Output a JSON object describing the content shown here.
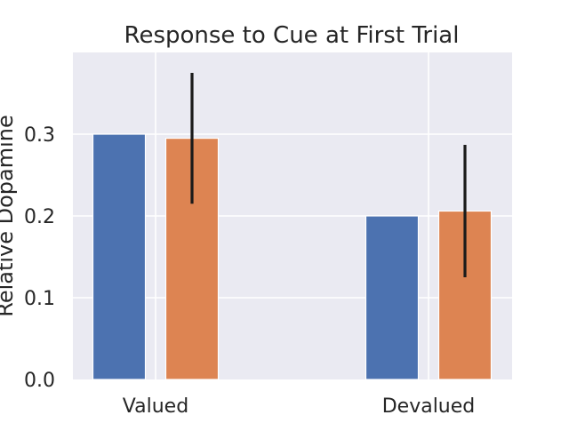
{
  "chart_data": {
    "type": "bar",
    "title": "Response to Cue at First Trial",
    "xlabel": "",
    "ylabel": "Relative Dopamine",
    "categories": [
      "Valued",
      "Devalued"
    ],
    "yticks": [
      "0.0",
      "0.1",
      "0.2",
      "0.3"
    ],
    "ylim": [
      0,
      0.4
    ],
    "grid": true,
    "legend": "none",
    "background_color": "#eaeaf2",
    "series": [
      {
        "color": "#4c72b0",
        "values": [
          0.3,
          0.2
        ]
      },
      {
        "color": "#dd8452",
        "values": [
          0.295,
          0.206
        ],
        "error": [
          0.08,
          0.081
        ]
      }
    ]
  }
}
